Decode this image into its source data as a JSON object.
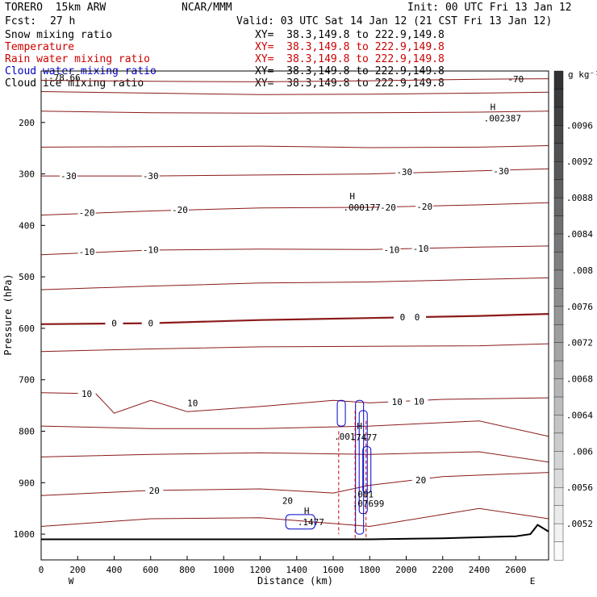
{
  "header": {
    "model": "TORERO  15km ARW",
    "fcst_label": "Fcst:",
    "fcst_value": "27 h",
    "center": "NCAR/MMM",
    "init": "Init: 00 UTC Fri 13 Jan 12",
    "valid": "Valid: 03 UTC Sat 14 Jan 12 (21 CST Fri 13 Jan 12)"
  },
  "fields": [
    {
      "name": "Snow mixing ratio",
      "xy": "XY=  38.3,149.8 to 222.9,149.8",
      "color": "#000000"
    },
    {
      "name": "Temperature",
      "xy": "XY=  38.3,149.8 to 222.9,149.8",
      "color": "#cc0000"
    },
    {
      "name": "Rain water mixing ratio",
      "xy": "XY=  38.3,149.8 to 222.9,149.8",
      "color": "#cc0000"
    },
    {
      "name": "Cloud water mixing ratio",
      "xy": "XY=  38.3,149.8 to 222.9,149.8",
      "color": "#0000cc"
    },
    {
      "name": "Cloud ice mixing ratio",
      "xy": "XY=  38.3,149.8 to 222.9,149.8",
      "color": "#000000"
    }
  ],
  "colorbar": {
    "unit": "g kg⁻¹",
    "labels": [
      ".0096",
      ".0092",
      ".0088",
      ".0084",
      ".008",
      ".0076",
      ".0072",
      ".0068",
      ".0064",
      ".006",
      ".0056",
      ".0052"
    ]
  },
  "chart_data": {
    "type": "contour cross-section",
    "xlabel": "Distance (km)",
    "ylabel": "Pressure (hPa)",
    "xlim": [
      0,
      2780
    ],
    "ylim": [
      1050,
      100
    ],
    "x_ticks": [
      0,
      200,
      400,
      600,
      800,
      1000,
      1200,
      1400,
      1600,
      1800,
      2000,
      2200,
      2400,
      2600
    ],
    "y_ticks": [
      200,
      300,
      400,
      500,
      600,
      700,
      800,
      900,
      1000
    ],
    "x_end_labels": {
      "left": "W",
      "right": "E"
    },
    "top_left_label": "-78.66",
    "isotherm_color": "#8b1a1a",
    "isotherms": [
      {
        "level": -70,
        "label": "-70",
        "x": [
          0,
          600,
          1200,
          1800,
          2400,
          2780
        ],
        "y": [
          118,
          120,
          121,
          119,
          116,
          115
        ]
      },
      {
        "level": -60,
        "x": [
          0,
          600,
          1200,
          1800,
          2400,
          2780
        ],
        "y": [
          140,
          143,
          146,
          145,
          143,
          141
        ]
      },
      {
        "level": -50,
        "x": [
          0,
          600,
          1200,
          1800,
          2400,
          2780
        ],
        "y": [
          178,
          181,
          182,
          181,
          180,
          178
        ]
      },
      {
        "level": -40,
        "x": [
          0,
          600,
          1200,
          1800,
          2400,
          2780
        ],
        "y": [
          248,
          247,
          246,
          249,
          248,
          245
        ]
      },
      {
        "level": -30,
        "labels": [
          {
            "x": 150,
            "y": 304,
            "text": "-30"
          },
          {
            "x": 600,
            "y": 304,
            "text": "-30"
          },
          {
            "x": 1990,
            "y": 296,
            "text": "-30"
          },
          {
            "x": 2520,
            "y": 294,
            "text": "-30"
          }
        ],
        "x": [
          0,
          600,
          1200,
          1800,
          2400,
          2780
        ],
        "y": [
          304,
          304,
          302,
          300,
          294,
          290
        ]
      },
      {
        "level": -20,
        "labels": [
          {
            "x": 250,
            "y": 375,
            "text": "-20"
          },
          {
            "x": 760,
            "y": 370,
            "text": "-20"
          },
          {
            "x": 1900,
            "y": 365,
            "text": "-20"
          },
          {
            "x": 2100,
            "y": 363,
            "text": "-20"
          }
        ],
        "x": [
          0,
          600,
          1200,
          1800,
          2400,
          2780
        ],
        "y": [
          380,
          372,
          366,
          365,
          360,
          356
        ]
      },
      {
        "level": -10,
        "labels": [
          {
            "x": 250,
            "y": 451,
            "text": "-10"
          },
          {
            "x": 600,
            "y": 447,
            "text": "-10"
          },
          {
            "x": 1920,
            "y": 447,
            "text": "-10"
          },
          {
            "x": 2080,
            "y": 445,
            "text": "-10"
          }
        ],
        "x": [
          0,
          600,
          1200,
          1800,
          2400,
          2780
        ],
        "y": [
          457,
          448,
          446,
          447,
          442,
          440
        ]
      },
      {
        "level": -5,
        "x": [
          0,
          600,
          1200,
          1800,
          2400,
          2780
        ],
        "y": [
          525,
          518,
          512,
          510,
          505,
          502
        ]
      },
      {
        "level": 0,
        "labels": [
          {
            "x": 400,
            "y": 590,
            "text": "0"
          },
          {
            "x": 600,
            "y": 590,
            "text": "0"
          },
          {
            "x": 1980,
            "y": 578,
            "text": "0"
          },
          {
            "x": 2060,
            "y": 578,
            "text": "0"
          }
        ],
        "bold": true,
        "x": [
          0,
          600,
          1200,
          1800,
          2400,
          2780
        ],
        "y": [
          592,
          590,
          584,
          580,
          576,
          572
        ]
      },
      {
        "level": 3,
        "x": [
          0,
          600,
          1200,
          1800,
          2400,
          2780
        ],
        "y": [
          645,
          640,
          636,
          635,
          634,
          630
        ]
      },
      {
        "level": 10,
        "labels": [
          {
            "x": 250,
            "y": 727,
            "text": "10"
          },
          {
            "x": 830,
            "y": 745,
            "text": "10"
          },
          {
            "x": 1950,
            "y": 743,
            "text": "10"
          },
          {
            "x": 2070,
            "y": 742,
            "text": "10"
          }
        ],
        "x": [
          0,
          300,
          400,
          600,
          800,
          1200,
          1600,
          1800,
          2200,
          2780
        ],
        "y": [
          725,
          727,
          765,
          740,
          762,
          752,
          740,
          745,
          738,
          735
        ]
      },
      {
        "level": 13,
        "x": [
          0,
          600,
          1200,
          1800,
          2400,
          2780
        ],
        "y": [
          790,
          795,
          795,
          790,
          780,
          810
        ]
      },
      {
        "level": 16,
        "x": [
          0,
          600,
          1200,
          1800,
          2400,
          2780
        ],
        "y": [
          850,
          845,
          842,
          845,
          840,
          860
        ]
      },
      {
        "level": 20,
        "labels": [
          {
            "x": 620,
            "y": 915,
            "text": "20"
          },
          {
            "x": 1350,
            "y": 935,
            "text": "20"
          },
          {
            "x": 2080,
            "y": 895,
            "text": "20"
          }
        ],
        "x": [
          0,
          600,
          1200,
          1600,
          1800,
          2200,
          2780
        ],
        "y": [
          925,
          915,
          912,
          920,
          905,
          888,
          880
        ]
      },
      {
        "level": 23,
        "x": [
          0,
          600,
          1200,
          1800,
          2400,
          2780
        ],
        "y": [
          985,
          970,
          968,
          985,
          950,
          970
        ]
      }
    ],
    "annotations": [
      {
        "type": "H",
        "x": 2460,
        "y": 192,
        "value": ".002387",
        "color": "#000000"
      },
      {
        "type": "H",
        "x": 1690,
        "y": 365,
        "value": ".000177",
        "color": "#000000"
      },
      {
        "type": "H",
        "x": 1440,
        "y": 976,
        "value": ".1477",
        "color": "#0000cc"
      },
      {
        "type": "H",
        "x": 1730,
        "y": 812,
        "value": ".7477",
        "color": "#0000cc"
      },
      {
        "type": "label",
        "x": 1640,
        "y": 810,
        "value": ".001",
        "color": "#cc0000"
      },
      {
        "type": "label",
        "x": 1740,
        "y": 922,
        "value": ".001",
        "color": "#cc0000"
      },
      {
        "type": "label",
        "x": 1740,
        "y": 940,
        "value": ".07699",
        "color": "#cc0000"
      }
    ],
    "terrain": {
      "x": [
        0,
        1800,
        2200,
        2600,
        2680,
        2720,
        2780
      ],
      "y": [
        1010,
        1010,
        1008,
        1004,
        1000,
        982,
        995
      ]
    }
  }
}
